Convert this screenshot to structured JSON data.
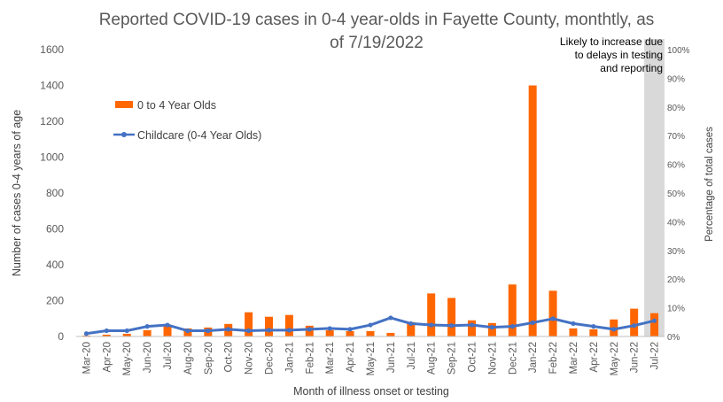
{
  "chart_data": {
    "type": "bar",
    "title_lines": [
      "Reported COVID-19 cases in 0-4 year-olds in Fayette County, monthtly, as",
      "of 7/19/2022"
    ],
    "xlabel": "Month of illness onset or testing",
    "ylabel": "Number of cases 0-4 years of age",
    "y2label": "Percentage of total cases",
    "ylim": [
      0,
      1600
    ],
    "y_ticks": [
      "0",
      "200",
      "400",
      "600",
      "800",
      "1000",
      "1200",
      "1400",
      "1600"
    ],
    "y2lim": [
      0,
      100
    ],
    "y2_ticks": [
      "0%",
      "10%",
      "20%",
      "30%",
      "40%",
      "50%",
      "60%",
      "70%",
      "80%",
      "90%",
      "100%"
    ],
    "categories": [
      "Mar-20",
      "Apr-20",
      "May-20",
      "Jun-20",
      "Jul-20",
      "Aug-20",
      "Sep-20",
      "Oct-20",
      "Nov-20",
      "Dec-20",
      "Jan-21",
      "Feb-21",
      "Mar-21",
      "Apr-21",
      "May-21",
      "Jun-21",
      "Jul-21",
      "Aug-21",
      "Sep-21",
      "Oct-21",
      "Nov-21",
      "Dec-21",
      "Jan-22",
      "Feb-22",
      "Mar-22",
      "Apr-22",
      "May-22",
      "Jun-22",
      "Jul-22"
    ],
    "series": [
      {
        "name": "0 to 4 Year Olds",
        "type": "bar",
        "axis": "left",
        "color": "#FF6600",
        "values": [
          5,
          10,
          15,
          35,
          60,
          45,
          50,
          70,
          135,
          110,
          120,
          60,
          35,
          30,
          30,
          20,
          80,
          240,
          215,
          90,
          75,
          290,
          1400,
          255,
          45,
          40,
          95,
          155,
          130
        ]
      },
      {
        "name": "Childcare (0-4 Year Olds)",
        "type": "line",
        "axis": "right",
        "color": "#4472C4",
        "values": [
          1,
          2,
          2,
          3.5,
          4,
          2,
          2,
          2.5,
          2,
          2.2,
          2.2,
          2.5,
          2.8,
          2.5,
          4,
          6.5,
          4.5,
          4,
          3.8,
          4,
          3.2,
          3.5,
          4.8,
          6.2,
          4.5,
          3.5,
          2.5,
          3.8,
          5.5
        ]
      }
    ],
    "legend": {
      "placement": "upper-left"
    },
    "shaded_region": {
      "category": "Jul-22",
      "color": "#D9D9D9",
      "annotation_lines": [
        "Likely to increase due",
        "to delays in testing",
        "and reporting"
      ]
    },
    "grid": false
  }
}
